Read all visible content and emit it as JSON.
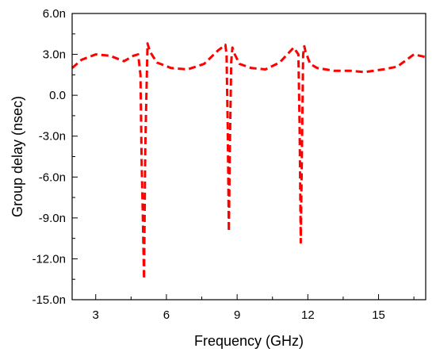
{
  "chart_data": {
    "type": "line",
    "xlabel": "Frequency (GHz)",
    "ylabel": "Group delay (nsec)",
    "xlim": [
      2,
      17
    ],
    "ylim": [
      -15,
      6
    ],
    "x_ticks": [
      3,
      6,
      9,
      12,
      15
    ],
    "x_minor_ticks": [
      4.5,
      7.5,
      10.5,
      13.5,
      16.5
    ],
    "y_ticks": [
      -15,
      -12,
      -9,
      -6,
      -3,
      0,
      3,
      6
    ],
    "y_tick_labels": [
      "-15.0n",
      "-12.0n",
      "-9.0n",
      "-6.0n",
      "-3.0n",
      "0.0",
      "3.0n",
      "6.0n"
    ],
    "y_minor_ticks": [
      -13.5,
      -10.5,
      -7.5,
      -4.5,
      -1.5,
      1.5,
      4.5
    ],
    "grid": false,
    "series": [
      {
        "color": "#ff0000",
        "style": "dashed",
        "x": [
          2.0,
          2.4,
          3.0,
          3.6,
          4.2,
          4.6,
          4.8,
          4.9,
          4.95,
          5.0,
          5.05,
          5.1,
          5.2,
          5.3,
          5.6,
          6.2,
          6.9,
          7.6,
          8.2,
          8.5,
          8.55,
          8.6,
          8.65,
          8.7,
          8.75,
          8.8,
          8.9,
          9.1,
          9.6,
          10.2,
          10.8,
          11.4,
          11.6,
          11.65,
          11.7,
          11.75,
          11.8,
          11.85,
          11.9,
          12.1,
          12.4,
          13.1,
          13.8,
          14.4,
          15.2,
          15.8,
          16.5,
          17.0
        ],
        "y": [
          2.0,
          2.6,
          3.0,
          2.9,
          2.5,
          2.9,
          3.0,
          1.5,
          -5.0,
          -9.0,
          -13.5,
          -4.0,
          3.8,
          3.2,
          2.4,
          2.0,
          1.9,
          2.3,
          3.3,
          3.7,
          3.0,
          -2.0,
          -10.0,
          -3.0,
          2.5,
          3.5,
          3.0,
          2.3,
          2.0,
          1.9,
          2.4,
          3.5,
          3.0,
          -2.0,
          -10.8,
          -4.0,
          3.0,
          3.6,
          3.2,
          2.3,
          2.0,
          1.8,
          1.8,
          1.7,
          1.9,
          2.1,
          3.0,
          2.8
        ]
      }
    ]
  }
}
